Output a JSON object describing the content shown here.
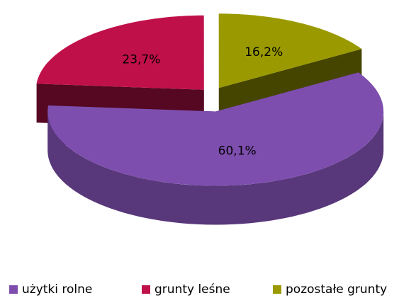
{
  "chart_data": {
    "type": "pie3d",
    "categories": [
      "użytki rolne",
      "grunty leśne",
      "pozostałe grunty"
    ],
    "values": [
      60.1,
      23.7,
      16.2
    ],
    "value_labels": [
      "60,1%",
      "23,7%",
      "16,2%"
    ],
    "colors": [
      "#7e4eae",
      "#c0104a",
      "#9a9a00"
    ],
    "legend": "bottom"
  }
}
